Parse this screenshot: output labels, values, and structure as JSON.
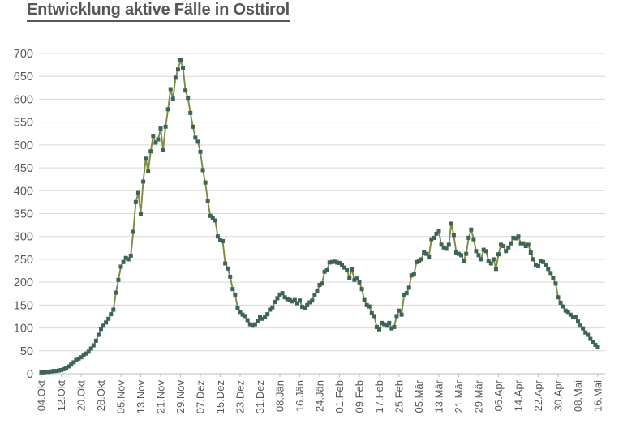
{
  "title": {
    "text": "Entwicklung aktive Fälle in Osttirol"
  },
  "chart_data": {
    "type": "line",
    "title": "Entwicklung aktive Fälle in Osttirol",
    "xlabel": "",
    "ylabel": "",
    "ylim": [
      0,
      700
    ],
    "y_ticks": [
      0,
      50,
      100,
      150,
      200,
      250,
      300,
      350,
      400,
      450,
      500,
      550,
      600,
      650,
      700
    ],
    "x_tick_labels": [
      "04.Okt",
      "12.Okt",
      "20.Okt",
      "28.Okt",
      "05.Nov",
      "13.Nov",
      "21.Nov",
      "29.Nov",
      "07.Dez",
      "15.Dez",
      "23.Dez",
      "31.Dez",
      "08.Jän",
      "16.Jän",
      "24.Jän",
      "01.Feb",
      "09.Feb",
      "17.Feb",
      "25.Feb",
      "05.Mär",
      "13.Mär",
      "21.Mär",
      "29.Mär",
      "06.Apr",
      "14.Apr",
      "22.Apr",
      "30.Apr",
      "08.Mai",
      "16.Mai"
    ],
    "x_tick_every_n_points": 8,
    "grid": "horizontal",
    "legend": "none",
    "marker": "square",
    "values": [
      3,
      3,
      4,
      4,
      5,
      6,
      6,
      7,
      8,
      10,
      13,
      16,
      20,
      25,
      30,
      33,
      36,
      40,
      44,
      48,
      55,
      62,
      72,
      85,
      98,
      105,
      112,
      120,
      130,
      140,
      177,
      205,
      234,
      244,
      253,
      250,
      258,
      310,
      375,
      395,
      350,
      420,
      470,
      442,
      486,
      520,
      505,
      512,
      536,
      490,
      540,
      578,
      622,
      601,
      647,
      665,
      685,
      669,
      619,
      603,
      570,
      540,
      516,
      507,
      485,
      445,
      418,
      377,
      345,
      340,
      335,
      300,
      293,
      290,
      241,
      230,
      212,
      185,
      173,
      144,
      135,
      129,
      126,
      117,
      108,
      105,
      108,
      115,
      125,
      120,
      125,
      130,
      140,
      145,
      157,
      165,
      173,
      176,
      167,
      163,
      161,
      158,
      161,
      154,
      160,
      146,
      143,
      150,
      156,
      160,
      173,
      180,
      194,
      197,
      223,
      226,
      243,
      244,
      245,
      243,
      242,
      237,
      232,
      226,
      210,
      228,
      205,
      208,
      200,
      185,
      161,
      150,
      147,
      132,
      126,
      102,
      97,
      111,
      108,
      105,
      111,
      99,
      102,
      126,
      138,
      129,
      173,
      176,
      188,
      215,
      217,
      244,
      247,
      250,
      265,
      262,
      256,
      294,
      297,
      306,
      312,
      282,
      276,
      273,
      282,
      328,
      303,
      265,
      262,
      259,
      247,
      262,
      297,
      315,
      294,
      268,
      259,
      250,
      271,
      268,
      247,
      241,
      250,
      229,
      261,
      282,
      279,
      268,
      276,
      285,
      297,
      296,
      300,
      285,
      285,
      279,
      282,
      265,
      250,
      238,
      235,
      247,
      244,
      238,
      229,
      220,
      209,
      197,
      167,
      155,
      147,
      138,
      135,
      129,
      123,
      125,
      114,
      105,
      99,
      90,
      85,
      76,
      70,
      63,
      58
    ],
    "colors": {
      "line": "#7d8b3f",
      "marker": "#3e6357",
      "gridline": "#d9d9d9",
      "axis_line": "#bfbfbf",
      "tick_text": "#595959",
      "title_text": "#575757"
    }
  }
}
